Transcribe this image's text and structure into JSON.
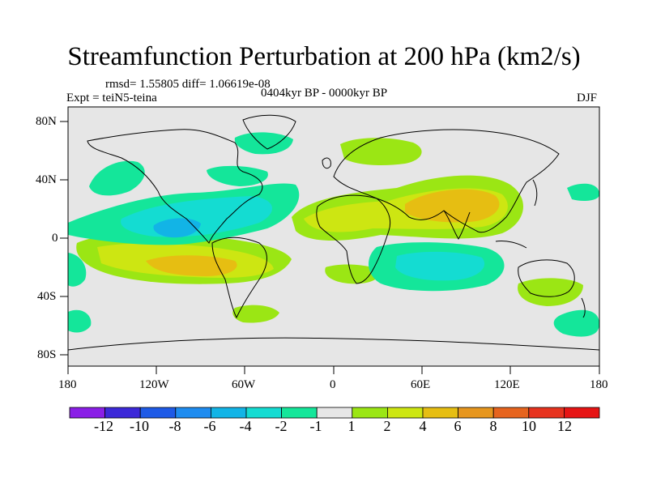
{
  "title": "Streamfunction Perturbation at 200 hPa (km2/s)",
  "stats": "rmsd= 1.55805 diff= 1.06619e-08",
  "experiment": "Expt = teiN5-teina",
  "period": "0404kyr BP - 0000kyr BP",
  "season": "DJF",
  "lat_labels": [
    "80N",
    "40N",
    "0",
    "40S",
    "80S"
  ],
  "lon_labels": [
    "180",
    "120W",
    "60W",
    "0",
    "60E",
    "120E",
    "180"
  ],
  "colorbar": {
    "labels": [
      "-12",
      "-10",
      "-8",
      "-6",
      "-4",
      "-2",
      "-1",
      "1",
      "2",
      "4",
      "6",
      "8",
      "10",
      "12"
    ],
    "colors": [
      "#8a1ee6",
      "#3c28d8",
      "#1e5ae6",
      "#1e8cf0",
      "#12b4e6",
      "#14dcd2",
      "#14e69a",
      "#e6e6e6",
      "#9be614",
      "#cde612",
      "#e6be12",
      "#e6961e",
      "#e6641e",
      "#e6321e",
      "#e61414"
    ]
  },
  "map_colors": {
    "neutral": "#e6e6e6",
    "pos_light": "#9be614",
    "pos_mid": "#cde612",
    "pos_strong": "#e6be12",
    "neg_light": "#14e69a",
    "neg_mid": "#14dcd2",
    "neg_strong": "#12b4e6"
  }
}
